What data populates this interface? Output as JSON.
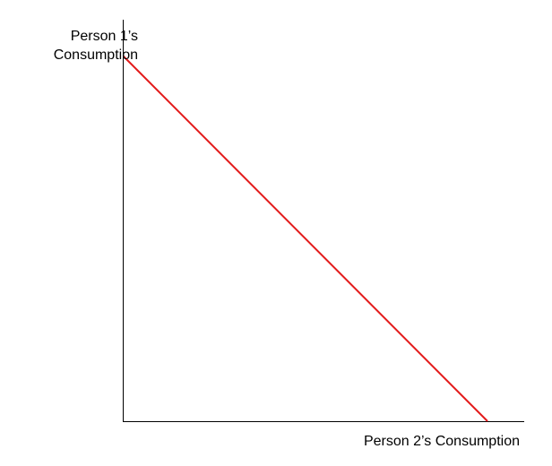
{
  "diagram": {
    "y_axis_label_line1": "Person 1’s",
    "y_axis_label_line2": "Consumption",
    "x_axis_label": "Person 2’s Consumption",
    "line_color": "#e31b1b",
    "axis_color": "#000000"
  }
}
